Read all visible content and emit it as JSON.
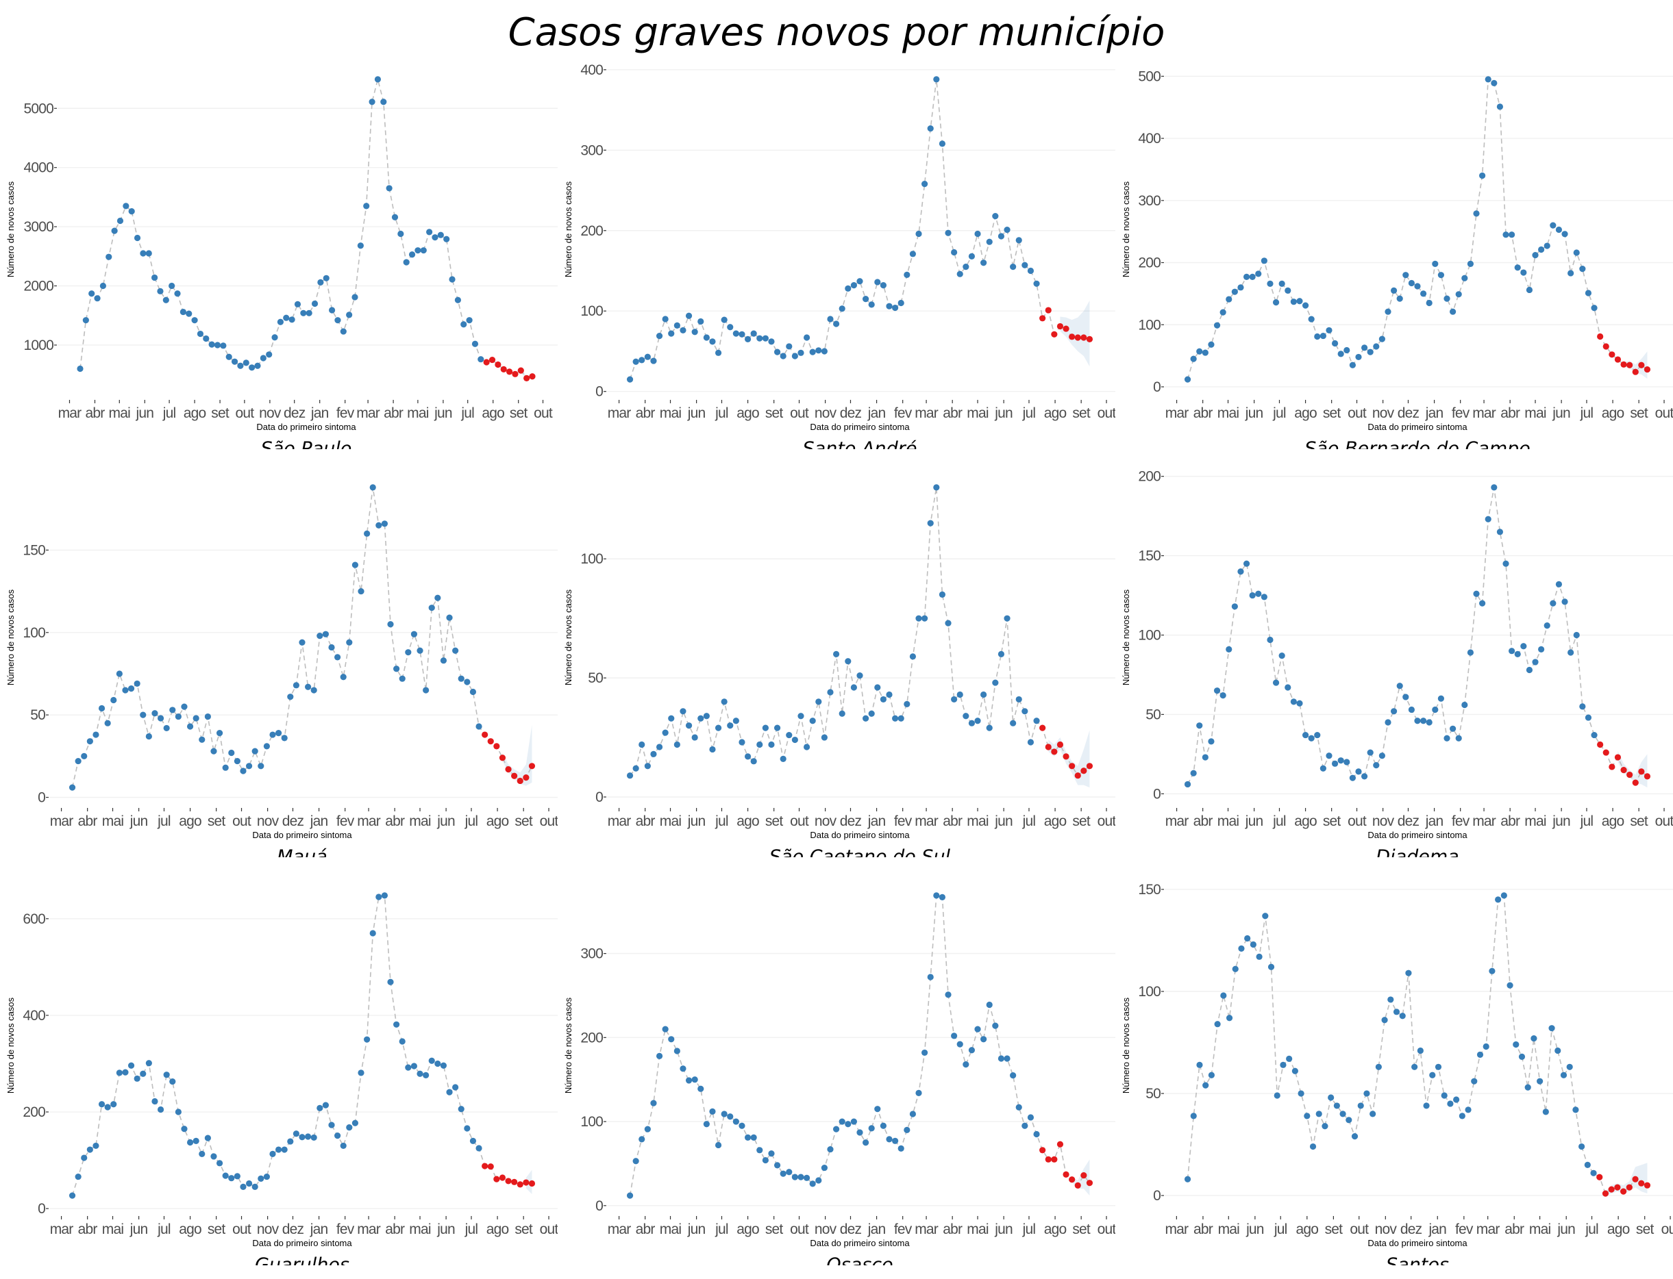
{
  "title": "Casos graves novos por município",
  "colors": {
    "observed": "#377eb8",
    "nowcast": "#e41a1c",
    "band": "#377eb8",
    "line": "#bdbdbd",
    "grid": "#f0f0f0"
  },
  "week_dates": [
    "2020-03-14",
    "2020-03-21",
    "2020-03-28",
    "2020-04-04",
    "2020-04-11",
    "2020-04-18",
    "2020-04-25",
    "2020-05-02",
    "2020-05-09",
    "2020-05-16",
    "2020-05-23",
    "2020-05-30",
    "2020-06-06",
    "2020-06-13",
    "2020-06-20",
    "2020-06-27",
    "2020-07-04",
    "2020-07-11",
    "2020-07-18",
    "2020-07-25",
    "2020-08-01",
    "2020-08-08",
    "2020-08-15",
    "2020-08-22",
    "2020-08-29",
    "2020-09-05",
    "2020-09-12",
    "2020-09-19",
    "2020-09-26",
    "2020-10-03",
    "2020-10-10",
    "2020-10-17",
    "2020-10-24",
    "2020-10-31",
    "2020-11-07",
    "2020-11-14",
    "2020-11-21",
    "2020-11-28",
    "2020-12-05",
    "2020-12-12",
    "2020-12-19",
    "2020-12-26",
    "2021-01-02",
    "2021-01-09",
    "2021-01-16",
    "2021-01-23",
    "2021-01-30",
    "2021-02-06",
    "2021-02-13",
    "2021-02-20",
    "2021-02-27",
    "2021-03-06",
    "2021-03-13",
    "2021-03-20",
    "2021-03-27",
    "2021-04-03",
    "2021-04-10",
    "2021-04-17",
    "2021-04-24",
    "2021-05-01",
    "2021-05-08",
    "2021-05-15",
    "2021-05-22",
    "2021-05-29",
    "2021-06-05",
    "2021-06-12",
    "2021-06-19",
    "2021-06-26",
    "2021-07-03",
    "2021-07-10",
    "2021-07-17",
    "2021-07-24",
    "2021-07-31",
    "2021-08-07",
    "2021-08-14",
    "2021-08-21",
    "2021-08-28",
    "2021-09-04",
    "2021-09-11",
    "2021-09-18"
  ],
  "chart_data": [
    {
      "type": "scatter",
      "title": "São Paulo",
      "xlabel": "Data do primeiro sintoma",
      "ylabel": "Número de novos casos",
      "x_tick_labels": [
        "mar",
        "abr",
        "mai",
        "jun",
        "jul",
        "ago",
        "set",
        "out",
        "nov",
        "dez",
        "jan",
        "fev",
        "mar",
        "abr",
        "mai",
        "jun",
        "jul",
        "ago",
        "set",
        "out"
      ],
      "y_ticks": [
        1000,
        2000,
        3000,
        4000,
        5000
      ],
      "grid": true,
      "observed": [
        600,
        1420,
        1870,
        1790,
        2000,
        2490,
        2930,
        3100,
        3350,
        3260,
        2810,
        2550,
        2550,
        2140,
        1910,
        1760,
        2000,
        1870,
        1560,
        1530,
        1420,
        1190,
        1110,
        1010,
        1000,
        990,
        800,
        720,
        650,
        700,
        620,
        650,
        780,
        840,
        1130,
        1390,
        1460,
        1430,
        1690,
        1540,
        1540,
        1700,
        2060,
        2130,
        1590,
        1420,
        1230,
        1510,
        1810,
        2680,
        3350,
        5110,
        5490,
        5110,
        3650,
        3160,
        2880,
        2400,
        2530,
        2600,
        2600,
        2910,
        2820,
        2860,
        2790,
        2110,
        1760,
        1350,
        1420,
        1020,
        760
      ],
      "nowcast": [
        710,
        750,
        670,
        590,
        550,
        510,
        570,
        440,
        470
      ],
      "band_lower": [
        null,
        null,
        null,
        null,
        null,
        490,
        540,
        420,
        440
      ],
      "band_upper": [
        null,
        null,
        null,
        null,
        null,
        540,
        600,
        480,
        510
      ]
    },
    {
      "type": "scatter",
      "title": "Santo André",
      "xlabel": "Data do primeiro sintoma",
      "ylabel": "Número de novos casos",
      "x_tick_labels": [
        "mar",
        "abr",
        "mai",
        "jun",
        "jul",
        "ago",
        "set",
        "out",
        "nov",
        "dez",
        "jan",
        "fev",
        "mar",
        "abr",
        "mai",
        "jun",
        "jul",
        "ago",
        "set",
        "out"
      ],
      "y_ticks": [
        0,
        100,
        200,
        300,
        400
      ],
      "grid": true,
      "observed": [
        15,
        37,
        39,
        43,
        38,
        69,
        90,
        72,
        82,
        76,
        94,
        74,
        87,
        67,
        62,
        48,
        89,
        80,
        72,
        71,
        65,
        72,
        66,
        66,
        62,
        49,
        44,
        56,
        44,
        48,
        67,
        49,
        51,
        50,
        90,
        84,
        103,
        128,
        132,
        137,
        115,
        108,
        136,
        132,
        106,
        104,
        110,
        145,
        171,
        196,
        258,
        327,
        388,
        308,
        197,
        173,
        146,
        155,
        168,
        196,
        160,
        186,
        218,
        193,
        201,
        155,
        188,
        157,
        150,
        134
      ],
      "nowcast": [
        91,
        101,
        71,
        81,
        78,
        68,
        67,
        67,
        65
      ],
      "band_lower": [
        null,
        null,
        null,
        75,
        68,
        58,
        50,
        44,
        31
      ],
      "band_upper": [
        null,
        null,
        null,
        93,
        92,
        89,
        92,
        100,
        113
      ]
    },
    {
      "type": "scatter",
      "title": "São Bernardo do Campo",
      "xlabel": "Data do primeiro sintoma",
      "ylabel": "Número de novos casos",
      "x_tick_labels": [
        "mar",
        "abr",
        "mai",
        "jun",
        "jul",
        "ago",
        "set",
        "out",
        "nov",
        "dez",
        "jan",
        "fev",
        "mar",
        "abr",
        "mai",
        "jun",
        "jul",
        "ago",
        "set",
        "out"
      ],
      "y_ticks": [
        0,
        100,
        200,
        300,
        400,
        500
      ],
      "grid": true,
      "observed": [
        12,
        45,
        57,
        55,
        68,
        99,
        120,
        141,
        153,
        160,
        177,
        177,
        182,
        203,
        166,
        136,
        166,
        155,
        137,
        138,
        131,
        109,
        81,
        82,
        91,
        70,
        53,
        59,
        35,
        48,
        63,
        56,
        65,
        77,
        121,
        155,
        142,
        180,
        167,
        162,
        150,
        135,
        198,
        180,
        142,
        121,
        149,
        175,
        198,
        279,
        340,
        495,
        489,
        451,
        245,
        245,
        192,
        184,
        156,
        212,
        221,
        227,
        260,
        253,
        246,
        183,
        216,
        190,
        151,
        127
      ],
      "nowcast": [
        81,
        65,
        52,
        44,
        36,
        35,
        24,
        35,
        28
      ],
      "band_lower": [
        null,
        null,
        null,
        null,
        33,
        30,
        22,
        20,
        13
      ],
      "band_upper": [
        null,
        null,
        null,
        null,
        40,
        42,
        36,
        45,
        57
      ]
    },
    {
      "type": "scatter",
      "title": "Mauá",
      "xlabel": "Data do primeiro sintoma",
      "ylabel": "Número de novos casos",
      "x_tick_labels": [
        "mar",
        "abr",
        "mai",
        "jun",
        "jul",
        "ago",
        "set",
        "out",
        "nov",
        "dez",
        "jan",
        "fev",
        "mar",
        "abr",
        "mai",
        "jun",
        "jul",
        "ago",
        "set",
        "out"
      ],
      "y_ticks": [
        0,
        50,
        100,
        150
      ],
      "grid": true,
      "observed": [
        6,
        22,
        25,
        34,
        38,
        54,
        45,
        59,
        75,
        65,
        66,
        69,
        50,
        37,
        51,
        48,
        42,
        53,
        49,
        55,
        43,
        48,
        35,
        49,
        28,
        39,
        18,
        27,
        22,
        16,
        19,
        28,
        19,
        31,
        38,
        39,
        36,
        61,
        68,
        94,
        67,
        65,
        98,
        99,
        91,
        85,
        73,
        94,
        141,
        125,
        160,
        188,
        165,
        166,
        105,
        78,
        72,
        88,
        99,
        89,
        65,
        115,
        121,
        83,
        109,
        89,
        72,
        70,
        64,
        43
      ],
      "nowcast": [
        38,
        34,
        31,
        24,
        17,
        13,
        10,
        12,
        19
      ],
      "band_lower": [
        null,
        null,
        null,
        22,
        15,
        11,
        8,
        7,
        9
      ],
      "band_upper": [
        null,
        null,
        null,
        27,
        20,
        17,
        15,
        20,
        44
      ]
    },
    {
      "type": "scatter",
      "title": "São Caetano do Sul",
      "xlabel": "Data do primeiro sintoma",
      "ylabel": "Número de novos casos",
      "x_tick_labels": [
        "mar",
        "abr",
        "mai",
        "jun",
        "jul",
        "ago",
        "set",
        "out",
        "nov",
        "dez",
        "jan",
        "fev",
        "mar",
        "abr",
        "mai",
        "jun",
        "jul",
        "ago",
        "set",
        "out"
      ],
      "y_ticks": [
        0,
        50,
        100
      ],
      "grid": true,
      "observed": [
        9,
        12,
        22,
        13,
        18,
        21,
        27,
        33,
        22,
        36,
        30,
        25,
        33,
        34,
        20,
        29,
        40,
        30,
        32,
        23,
        17,
        15,
        22,
        29,
        22,
        29,
        16,
        26,
        24,
        34,
        21,
        32,
        40,
        25,
        44,
        60,
        35,
        57,
        46,
        51,
        33,
        35,
        46,
        41,
        43,
        33,
        33,
        39,
        59,
        75,
        75,
        115,
        130,
        85,
        73,
        41,
        43,
        34,
        31,
        32,
        43,
        29,
        48,
        60,
        75,
        31,
        41,
        36,
        23,
        32
      ],
      "nowcast": [
        29,
        21,
        19,
        22,
        17,
        13,
        9,
        11,
        13
      ],
      "band_lower": [
        null,
        19,
        17,
        20,
        14,
        10,
        5,
        5,
        4
      ],
      "band_upper": [
        null,
        24,
        22,
        25,
        19,
        15,
        13,
        20,
        28
      ]
    },
    {
      "type": "scatter",
      "title": "Diadema",
      "xlabel": "Data do primeiro sintoma",
      "ylabel": "Número de novos casos",
      "x_tick_labels": [
        "mar",
        "abr",
        "mai",
        "jun",
        "jul",
        "ago",
        "set",
        "out",
        "nov",
        "dez",
        "jan",
        "fev",
        "mar",
        "abr",
        "mai",
        "jun",
        "jul",
        "ago",
        "set",
        "out"
      ],
      "y_ticks": [
        0,
        50,
        100,
        150,
        200
      ],
      "grid": true,
      "observed": [
        6,
        13,
        43,
        23,
        33,
        65,
        62,
        91,
        118,
        140,
        145,
        125,
        126,
        124,
        97,
        70,
        87,
        67,
        58,
        57,
        37,
        35,
        37,
        16,
        24,
        19,
        21,
        20,
        10,
        14,
        11,
        26,
        18,
        24,
        45,
        52,
        68,
        61,
        53,
        46,
        46,
        45,
        53,
        60,
        35,
        41,
        35,
        56,
        89,
        126,
        120,
        173,
        193,
        165,
        145,
        90,
        88,
        93,
        78,
        83,
        91,
        106,
        120,
        132,
        121,
        89,
        100,
        55,
        48,
        37
      ],
      "nowcast": [
        31,
        26,
        17,
        23,
        15,
        12,
        7,
        14,
        11
      ],
      "band_lower": [
        null,
        null,
        null,
        20,
        13,
        10,
        7,
        6,
        4
      ],
      "band_upper": [
        null,
        null,
        null,
        27,
        19,
        15,
        12,
        20,
        25
      ]
    },
    {
      "type": "scatter",
      "title": "Guarulhos",
      "xlabel": "Data do primeiro sintoma",
      "ylabel": "Número de novos casos",
      "x_tick_labels": [
        "mar",
        "abr",
        "mai",
        "jun",
        "jul",
        "ago",
        "set",
        "out",
        "nov",
        "dez",
        "jan",
        "fev",
        "mar",
        "abr",
        "mai",
        "jun",
        "jul",
        "ago",
        "set",
        "out"
      ],
      "y_ticks": [
        0,
        200,
        400,
        600
      ],
      "grid": true,
      "observed": [
        27,
        66,
        105,
        122,
        130,
        216,
        210,
        216,
        281,
        282,
        296,
        269,
        279,
        301,
        222,
        205,
        277,
        263,
        200,
        165,
        137,
        140,
        113,
        146,
        108,
        94,
        68,
        63,
        67,
        45,
        52,
        45,
        62,
        66,
        113,
        122,
        122,
        139,
        155,
        148,
        149,
        147,
        208,
        214,
        173,
        151,
        130,
        168,
        177,
        281,
        350,
        570,
        645,
        648,
        469,
        381,
        346,
        292,
        295,
        279,
        276,
        306,
        300,
        296,
        241,
        251,
        206,
        166,
        140,
        125
      ],
      "nowcast": [
        88,
        87,
        61,
        64,
        57,
        55,
        50,
        54,
        52
      ],
      "band_lower": [
        null,
        null,
        null,
        null,
        null,
        null,
        null,
        42,
        30
      ],
      "band_upper": [
        null,
        null,
        null,
        null,
        null,
        null,
        null,
        64,
        80
      ]
    },
    {
      "type": "scatter",
      "title": "Osasco",
      "xlabel": "Data do primeiro sintoma",
      "ylabel": "Número de novos casos",
      "x_tick_labels": [
        "mar",
        "abr",
        "mai",
        "jun",
        "jul",
        "ago",
        "set",
        "out",
        "nov",
        "dez",
        "jan",
        "fev",
        "mar",
        "abr",
        "mai",
        "jun",
        "jul",
        "ago",
        "set",
        "out"
      ],
      "y_ticks": [
        0,
        100,
        200,
        300
      ],
      "grid": true,
      "observed": [
        12,
        53,
        79,
        91,
        122,
        178,
        210,
        198,
        184,
        163,
        149,
        150,
        139,
        97,
        112,
        72,
        109,
        106,
        100,
        95,
        81,
        81,
        66,
        54,
        62,
        48,
        38,
        40,
        34,
        34,
        33,
        26,
        30,
        45,
        67,
        91,
        100,
        97,
        100,
        87,
        75,
        92,
        115,
        95,
        79,
        77,
        68,
        90,
        109,
        134,
        182,
        272,
        369,
        367,
        251,
        202,
        192,
        168,
        185,
        210,
        198,
        239,
        214,
        175,
        175,
        155,
        117,
        95,
        105,
        85
      ],
      "nowcast": [
        66,
        55,
        55,
        73,
        37,
        31,
        24,
        36,
        27
      ],
      "band_lower": [
        null,
        null,
        null,
        null,
        null,
        28,
        20,
        20,
        12
      ],
      "band_upper": [
        null,
        null,
        null,
        null,
        null,
        34,
        30,
        44,
        55
      ]
    },
    {
      "type": "scatter",
      "title": "Santos",
      "xlabel": "Data do primeiro sintoma",
      "ylabel": "Número de novos casos",
      "x_tick_labels": [
        "mar",
        "abr",
        "mai",
        "jun",
        "jul",
        "ago",
        "set",
        "out",
        "nov",
        "dez",
        "jan",
        "fev",
        "mar",
        "abr",
        "mai",
        "jun",
        "jul",
        "ago",
        "set",
        "out"
      ],
      "y_ticks": [
        0,
        50,
        100,
        150
      ],
      "grid": true,
      "observed": [
        8,
        39,
        64,
        54,
        59,
        84,
        98,
        87,
        111,
        121,
        126,
        123,
        117,
        137,
        112,
        49,
        64,
        67,
        61,
        50,
        39,
        24,
        40,
        34,
        48,
        44,
        40,
        37,
        29,
        44,
        50,
        40,
        63,
        86,
        96,
        90,
        88,
        109,
        63,
        71,
        44,
        59,
        63,
        49,
        45,
        47,
        39,
        42,
        56,
        69,
        73,
        110,
        145,
        147,
        103,
        74,
        68,
        53,
        77,
        56,
        41,
        82,
        71,
        59,
        63,
        42,
        24,
        15,
        11
      ],
      "nowcast": [
        9,
        1,
        3,
        4,
        2,
        4,
        8,
        6,
        5
      ],
      "band_lower": [
        null,
        0,
        1,
        2,
        1,
        2,
        4,
        2,
        1
      ],
      "band_upper": [
        null,
        2,
        5,
        6,
        5,
        7,
        14,
        15,
        16
      ]
    }
  ]
}
